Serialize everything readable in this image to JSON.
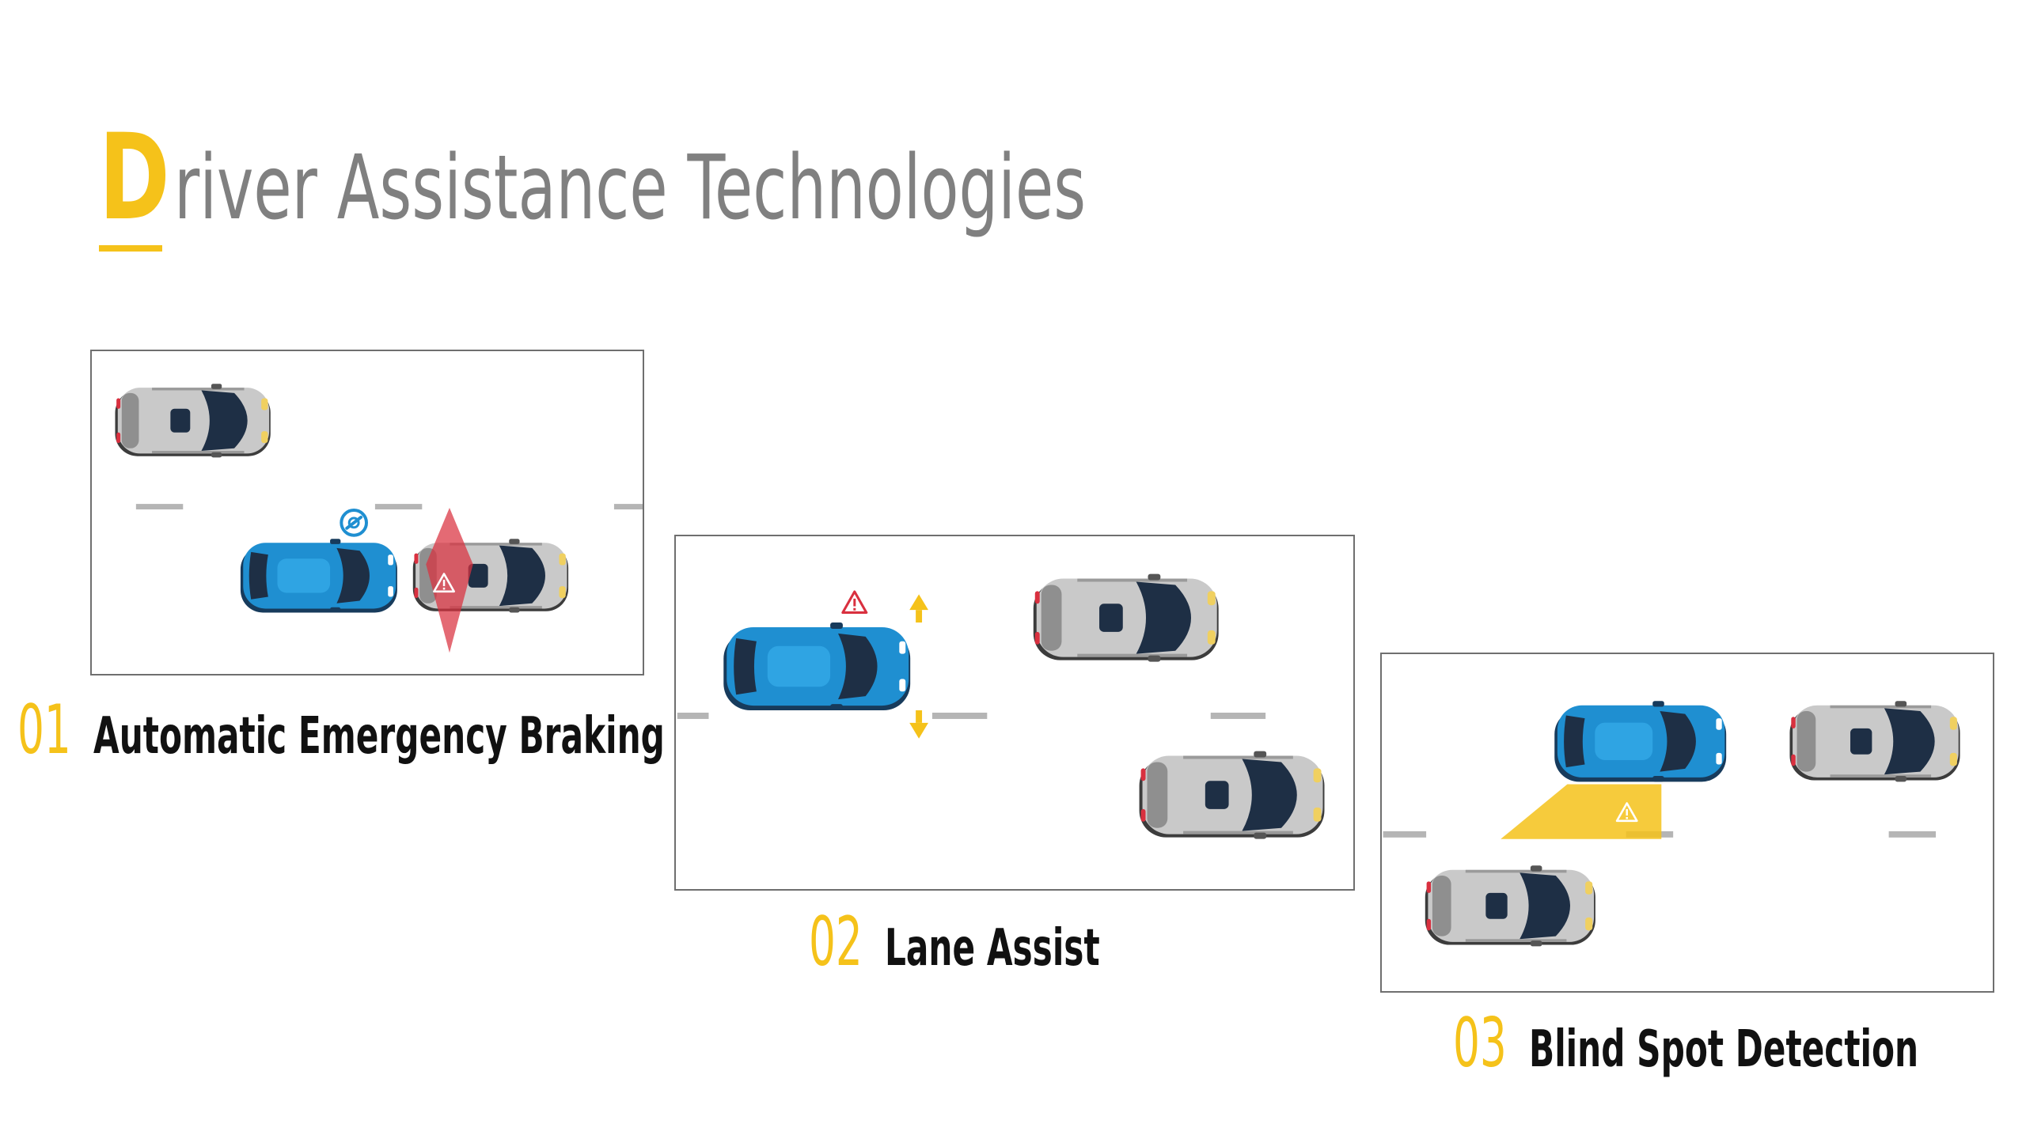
{
  "title": {
    "initial": "D",
    "rest": "river Assistance Technologies"
  },
  "features": [
    {
      "number": "01",
      "label": "Automatic Emergency Braking"
    },
    {
      "number": "02",
      "label": "Lane Assist"
    },
    {
      "number": "03",
      "label": "Blind Spot Detection"
    }
  ],
  "colors": {
    "accent": "#f5c21a",
    "title_gray": "#808080",
    "ego_car_blue": "#1f8fd1",
    "other_car_gray": "#c9c9c9",
    "warning_red": "#d9303f",
    "lane_mark": "#b5b5b5"
  }
}
